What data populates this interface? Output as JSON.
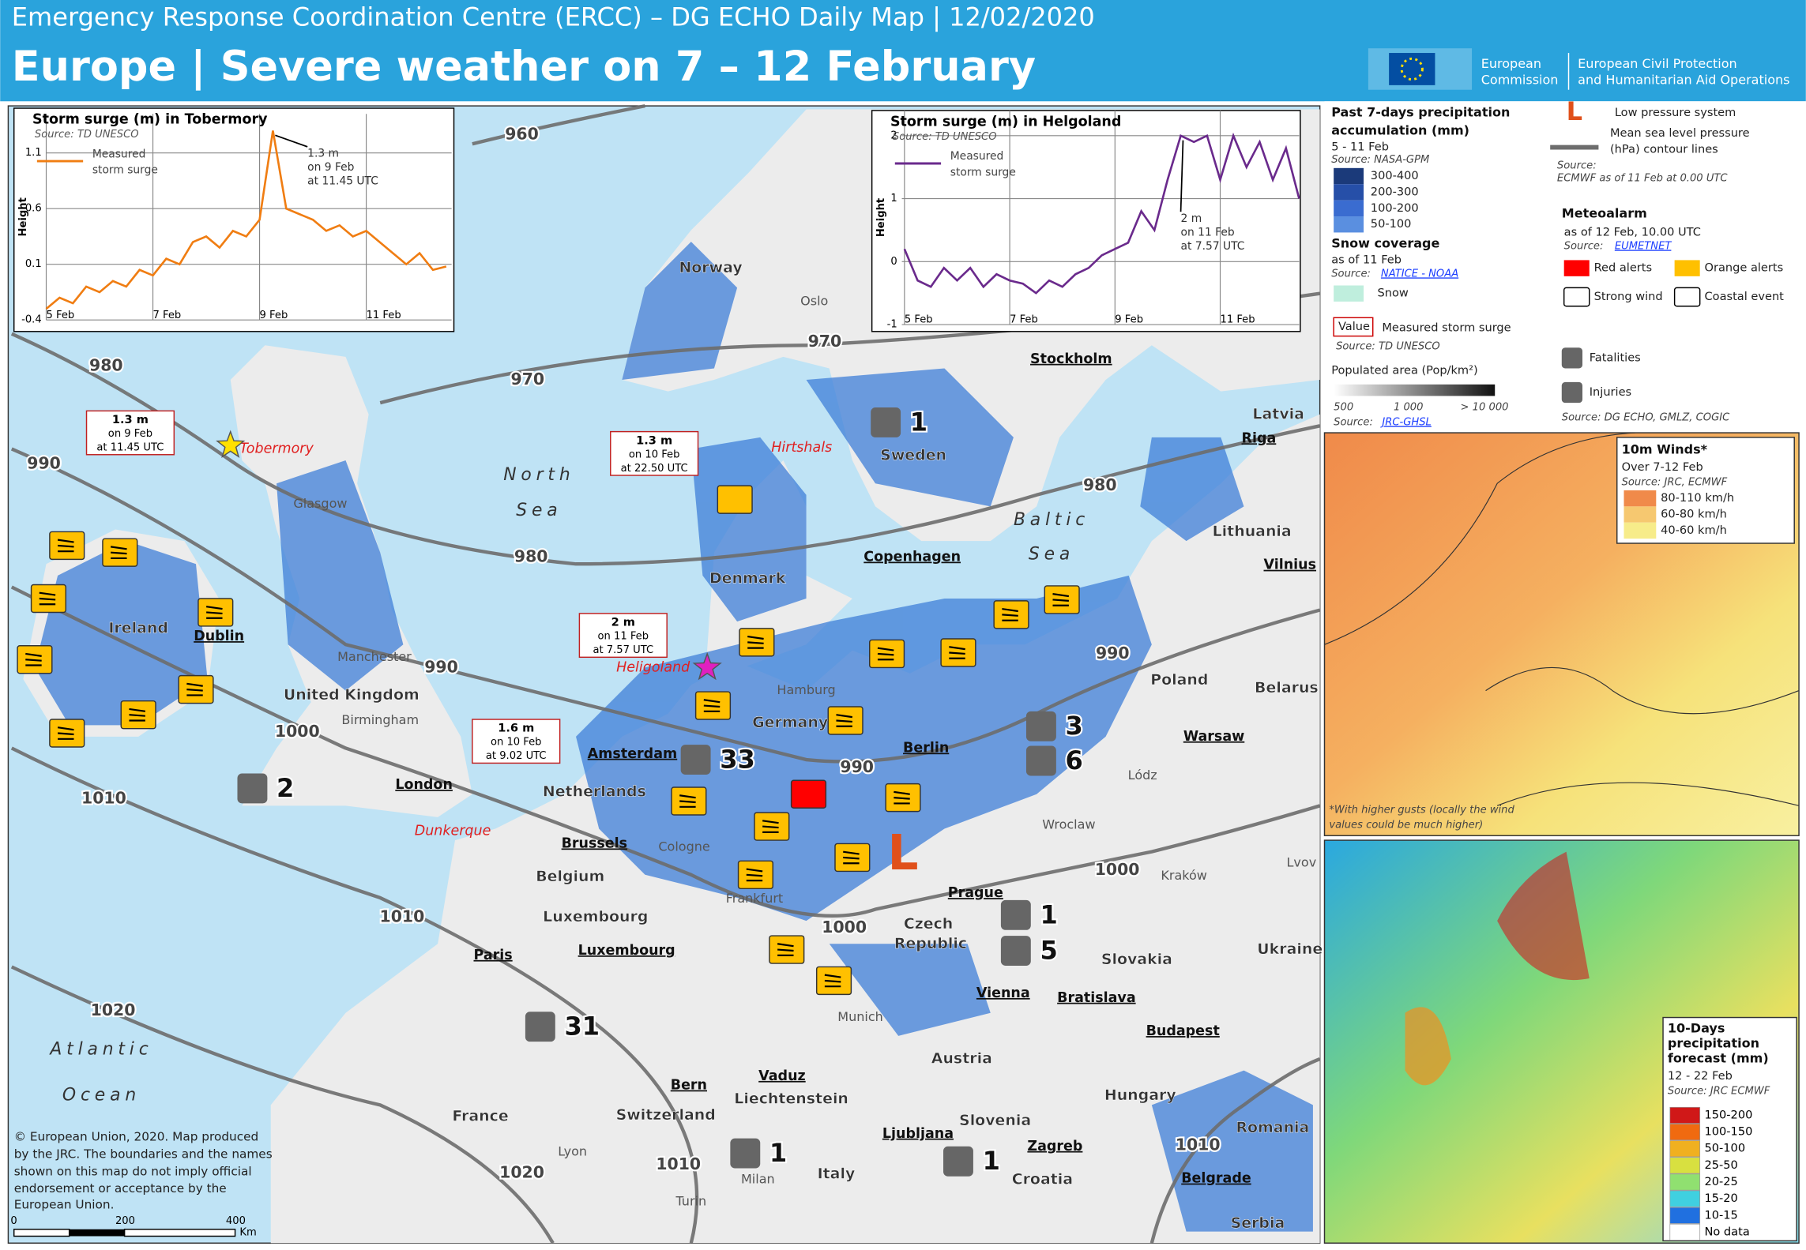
{
  "header": {
    "line1": "Emergency Response Coordination Centre (ERCC) – DG ECHO Daily Map | 12/02/2020",
    "title": "Europe | Severe weather on 7 – 12 February",
    "logo1": [
      "European",
      "Commission"
    ],
    "logo2": [
      "European Civil Protection",
      "and Humanitarian Aid Operations"
    ]
  },
  "chart_data": [
    {
      "type": "line",
      "title": "Storm surge (m) in Tobermory",
      "source": "Source: TD UNESCO",
      "y_label": "Height",
      "x": [
        5,
        5.25,
        5.5,
        5.75,
        6,
        6.25,
        6.5,
        6.75,
        7,
        7.25,
        7.5,
        7.75,
        8,
        8.25,
        8.5,
        8.75,
        9,
        9.25,
        9.5,
        9.75,
        10,
        10.25,
        10.5,
        10.75,
        11,
        11.25,
        11.5,
        11.75,
        12,
        12.25,
        12.5
      ],
      "series": [
        {
          "name": "Measured storm surge",
          "color": "#f07d12",
          "values": [
            -0.3,
            -0.2,
            -0.25,
            -0.1,
            -0.15,
            -0.05,
            -0.1,
            0.05,
            0,
            0.15,
            0.1,
            0.3,
            0.35,
            0.25,
            0.4,
            0.35,
            0.5,
            1.3,
            0.6,
            0.55,
            0.5,
            0.4,
            0.45,
            0.35,
            0.4,
            0.3,
            0.2,
            0.1,
            0.2,
            0.05,
            0.08
          ]
        }
      ],
      "xlim": [
        5,
        12.6
      ],
      "xticks": [
        {
          "value": 5,
          "label": "5 Feb"
        },
        {
          "value": 7,
          "label": "7 Feb"
        },
        {
          "value": 9,
          "label": "9 Feb"
        },
        {
          "value": 11,
          "label": "11 Feb"
        }
      ],
      "ylim": [
        -0.4,
        1.45
      ],
      "yticks": [
        -0.4,
        0.1,
        0.6,
        1.1
      ],
      "grid": true,
      "annotation": [
        "1.3 m",
        "on 9 Feb",
        "at 11.45 UTC"
      ]
    },
    {
      "type": "line",
      "title": "Storm surge (m) in Helgoland",
      "source": "Source: TD UNESCO",
      "y_label": "Height",
      "x": [
        5,
        5.25,
        5.5,
        5.75,
        6,
        6.25,
        6.5,
        6.75,
        7,
        7.25,
        7.5,
        7.75,
        8,
        8.25,
        8.5,
        8.75,
        9,
        9.25,
        9.5,
        9.75,
        10,
        10.25,
        10.5,
        10.75,
        11,
        11.25,
        11.5,
        11.75,
        12,
        12.25,
        12.5
      ],
      "series": [
        {
          "name": "Measured storm surge",
          "color": "#6a2a8c",
          "values": [
            0.2,
            -0.3,
            -0.4,
            -0.1,
            -0.3,
            -0.1,
            -0.4,
            -0.2,
            -0.3,
            -0.35,
            -0.5,
            -0.3,
            -0.4,
            -0.2,
            -0.1,
            0.1,
            0.2,
            0.3,
            0.8,
            0.5,
            1.3,
            2,
            1.9,
            2,
            1.3,
            2,
            1.5,
            1.9,
            1.3,
            1.8,
            1
          ]
        }
      ],
      "xlim": [
        4.95,
        12.5
      ],
      "xticks": [
        {
          "value": 5,
          "label": "5 Feb"
        },
        {
          "value": 7,
          "label": "7 Feb"
        },
        {
          "value": 9,
          "label": "9 Feb"
        },
        {
          "value": 11,
          "label": "11 Feb"
        }
      ],
      "ylim": [
        -1,
        2.4
      ],
      "yticks": [
        -1,
        0,
        1,
        2
      ],
      "grid": true,
      "annotation": [
        "2 m",
        "on 11 Feb",
        "at 7.57 UTC"
      ]
    }
  ],
  "legend": {
    "precip_title": [
      "Past 7-days precipitation",
      "accumulation (mm)"
    ],
    "precip_period": "5 - 11 Feb",
    "precip_source": "Source: NASA-GPM",
    "precip_classes": [
      "300-400",
      "200-300",
      "100-200",
      "50-100"
    ],
    "snow_title": "Snow coverage",
    "snow_date": "as of 11 Feb",
    "snow_source_prefix": "Source:",
    "snow_source": "NATICE - NOAA",
    "snow": "Snow",
    "value_box": "Value",
    "surge": "Measured storm surge",
    "surge_source": "Source: TD UNESCO",
    "pop_title": "Populated area (Pop/km²)",
    "pop_classes": [
      "500",
      "1 000",
      "> 10 000"
    ],
    "pop_source_prefix": "Source:",
    "pop_source": "JRC-GHSL",
    "low": "Low pressure system",
    "isobar": [
      "Mean sea level pressure",
      "(hPa) contour lines"
    ],
    "isobar_source": [
      "Source:",
      "ECMWF as of 11 Feb at 0.00 UTC"
    ],
    "meteo_title": "Meteoalarm",
    "meteo_date": "as of 12 Feb, 10.00 UTC",
    "meteo_source_prefix": "Source:",
    "meteo_source": "EUMETNET",
    "red": "Red alerts",
    "orange": "Orange alerts",
    "wind": "Strong wind",
    "coastal": "Coastal event",
    "fatalities": "Fatalities",
    "injuries": "Injuries",
    "impact_source": "Source: DG ECHO, GMLZ, COGIC"
  },
  "wind_inset": {
    "title": "10m Winds*",
    "period": "Over 7-12 Feb",
    "source": "Source: JRC, ECMWF",
    "classes": [
      "80-110 km/h",
      "60-80 km/h",
      "40-60 km/h"
    ],
    "note": [
      "*With higher gusts (locally the wind",
      "values could be much higher)"
    ]
  },
  "precip_inset": {
    "title": [
      "10-Days",
      "precipitation",
      "forecast (mm)"
    ],
    "period": "12 - 22 Feb",
    "source": "Source: JRC ECMWF",
    "classes": [
      "150-200",
      "100-150",
      "50-100",
      "25-50",
      "20-25",
      "15-20",
      "10-15",
      "No data"
    ]
  },
  "copyright": [
    "© European Union, 2020. Map produced",
    "by the JRC. The boundaries and the names",
    "shown on this map do not imply official",
    "endorsement or acceptance by the",
    "European Union."
  ],
  "scale": [
    "0",
    "200",
    "400",
    "Km"
  ],
  "places": [
    "Norway",
    "Oslo",
    "Sweden",
    "Stockholm",
    "Latvia",
    "Riga",
    "Lithuania",
    "Vilnius",
    "Denmark",
    "Copenhagen",
    "Ireland",
    "Dublin",
    "Glasgow",
    "Manchester",
    "United Kingdom",
    "Birmingham",
    "London",
    "Hamburg",
    "Germany",
    "Berlin",
    "Amsterdam",
    "Netherlands",
    "Brussels",
    "Belgium",
    "Cologne",
    "Luxembourg",
    "Luxembourg",
    "Frankfurt",
    "Paris",
    "France",
    "Munich",
    "Prague",
    "Czech",
    "Republic",
    "Poland",
    "Warsaw",
    "Lódz",
    "Wroclaw",
    "Kraków",
    "Belarus",
    "Ukraine",
    "Slovakia",
    "Vienna",
    "Bratislava",
    "Budapest",
    "Hungary",
    "Austria",
    "Bern",
    "Vaduz",
    "Liechtenstein",
    "Switzerland",
    "Slovenia",
    "Ljubljana",
    "Zagreb",
    "Croatia",
    "Lyon",
    "Milan",
    "Italy",
    "Turin",
    "Romania",
    "Belgrade",
    "Serbia",
    "Lvov",
    "Hirtshals",
    "Tobermory",
    "Heligoland",
    "Dunkerque",
    "North",
    "Sea",
    "Baltic",
    "Sea",
    "Atlantic",
    "Ocean"
  ],
  "surges": [
    [
      "1.3 m",
      "on 9 Feb",
      "at 11.45 UTC"
    ],
    [
      "1.3 m",
      "on 10 Feb",
      "at 22.50 UTC"
    ],
    [
      "2 m",
      "on 11 Feb",
      "at 7.57 UTC"
    ],
    [
      "1.6 m",
      "on 10 Feb",
      "at 9.02 UTC"
    ]
  ],
  "isobars": [
    960,
    970,
    970,
    980,
    990,
    980,
    980,
    990,
    1000,
    990,
    990,
    1000,
    1000,
    1010,
    1010,
    1020,
    1020,
    1010,
    1010
  ],
  "fatalities": [
    1,
    2,
    3,
    1,
    1,
    1
  ],
  "injuries": [
    33,
    6,
    5,
    31
  ],
  "low_symbol": "L"
}
